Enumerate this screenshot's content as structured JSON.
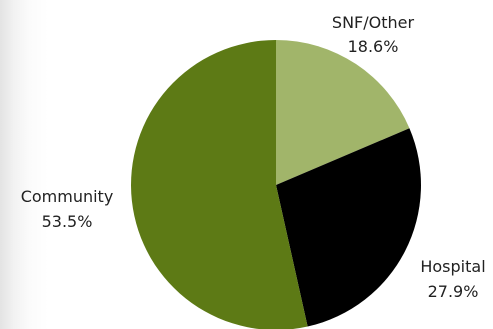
{
  "chart_data": {
    "type": "pie",
    "title": "",
    "slices": [
      {
        "name": "SNF/Other",
        "value": 18.6,
        "label": "18.6%",
        "color": "#a1b56a"
      },
      {
        "name": "Hospital",
        "value": 27.9,
        "label": "27.9%",
        "color": "#000000"
      },
      {
        "name": "Community",
        "value": 53.5,
        "label": "53.5%",
        "color": "#5d7a15"
      }
    ],
    "start_angle": "12 o'clock",
    "direction": "clockwise",
    "legend": "none",
    "data_labels": "outside, name and percent"
  }
}
